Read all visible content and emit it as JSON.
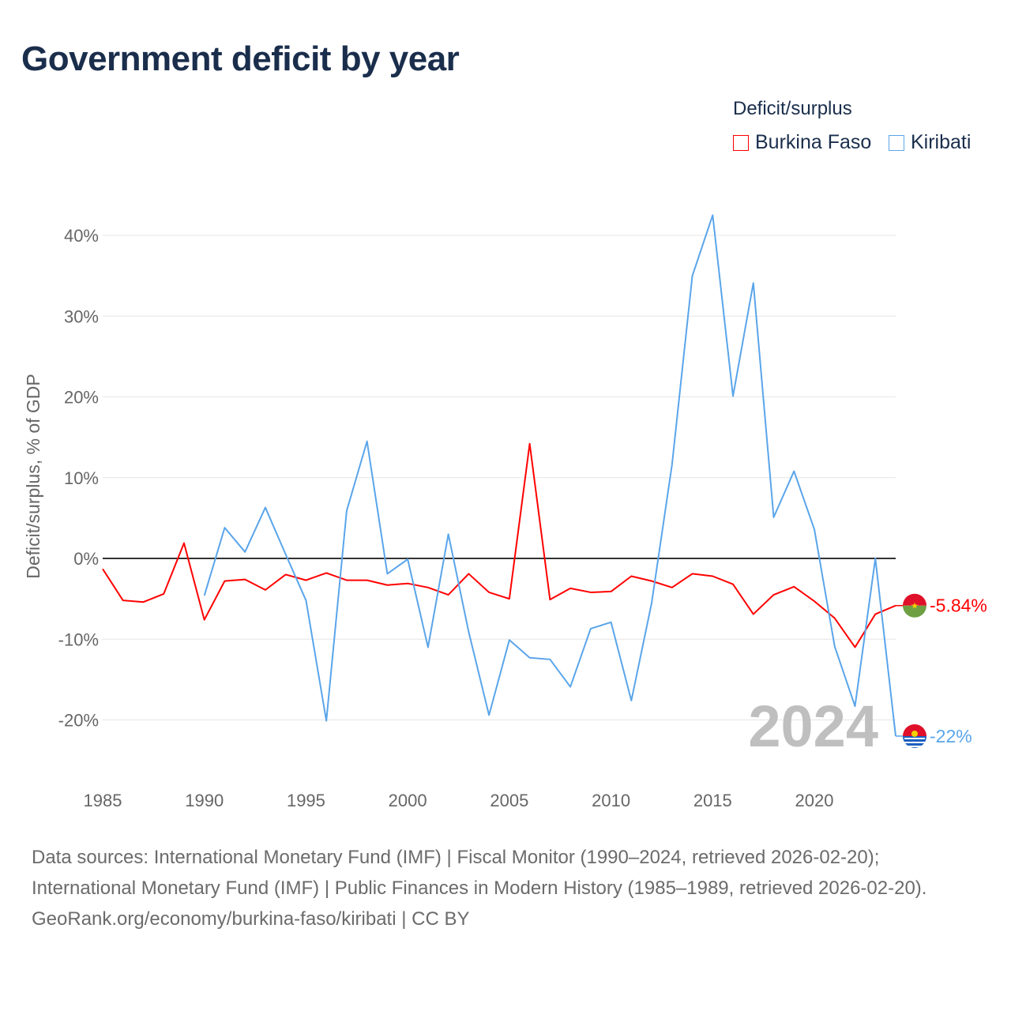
{
  "title": "Government deficit by year",
  "legend": {
    "title": "Deficit/surplus",
    "items": [
      {
        "label": "Burkina Faso",
        "color": "#ff0000"
      },
      {
        "label": "Kiribati",
        "color": "#5aa5ea"
      }
    ]
  },
  "footer": {
    "sources": "Data sources: International Monetary Fund (IMF) | Fiscal Monitor (1990–2024, retrieved 2026-02-20); International Monetary Fund (IMF) | Public Finances in Modern History (1985–1989, retrieved 2026-02-20).",
    "credit": "GeoRank.org/economy/burkina-faso/kiribati | CC BY"
  },
  "chart_data": {
    "type": "line",
    "title": "Government deficit by year",
    "ylabel": "Deficit/surplus, % of GDP",
    "xlabel": "",
    "xlim": [
      1985,
      2024
    ],
    "ylim": [
      -25,
      45
    ],
    "x_ticks": [
      "1985",
      "1990",
      "1995",
      "2000",
      "2005",
      "2010",
      "2015",
      "2020"
    ],
    "y_ticks": [
      {
        "v": 40,
        "label": "40%"
      },
      {
        "v": 30,
        "label": "30%"
      },
      {
        "v": 20,
        "label": "20%"
      },
      {
        "v": 10,
        "label": "10%"
      },
      {
        "v": 0,
        "label": "0%"
      },
      {
        "v": -10,
        "label": "-10%"
      },
      {
        "v": -20,
        "label": "-20%"
      }
    ],
    "year_watermark": "2024",
    "series": [
      {
        "name": "Burkina Faso",
        "color": "#ff0000",
        "end_label": "-5.84%",
        "start": 1985,
        "values": [
          -1.3,
          -5.2,
          -5.4,
          -4.4,
          1.9,
          -7.6,
          -2.8,
          -2.6,
          -3.9,
          -2.0,
          -2.7,
          -1.8,
          -2.7,
          -2.7,
          -3.3,
          -3.1,
          -3.6,
          -4.5,
          -1.9,
          -4.2,
          -5.0,
          14.2,
          -5.1,
          -3.7,
          -4.2,
          -4.1,
          -2.2,
          -2.8,
          -3.6,
          -1.9,
          -2.2,
          -3.2,
          -6.9,
          -4.5,
          -3.5,
          -5.3,
          -7.4,
          -11.0,
          -6.9,
          -5.84
        ]
      },
      {
        "name": "Kiribati",
        "color": "#5aa5ea",
        "end_label": "-22%",
        "start": 1990,
        "values": [
          -4.6,
          3.8,
          0.8,
          6.3,
          0.5,
          -5.2,
          -20.1,
          5.9,
          14.5,
          -1.9,
          -0.1,
          -11.0,
          3.0,
          -9.1,
          -19.4,
          -10.1,
          -12.3,
          -12.5,
          -15.9,
          -8.7,
          -7.9,
          -17.6,
          -5.5,
          11.6,
          35.0,
          42.5,
          20.1,
          34.1,
          5.1,
          10.8,
          3.6,
          -10.9,
          -18.3,
          0.0,
          -22.0
        ]
      }
    ]
  }
}
